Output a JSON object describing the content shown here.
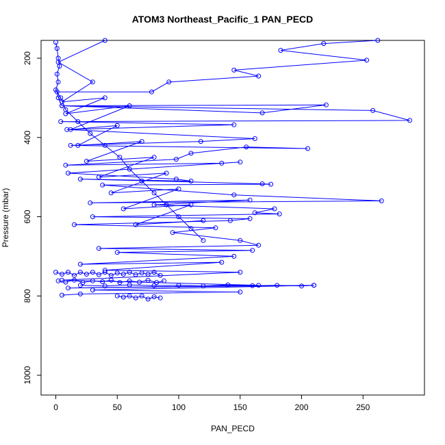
{
  "chart_data": {
    "type": "line",
    "title": "ATOM3 Northeast_Pacific_1 PAN_PECD",
    "xlabel": "PAN_PECD",
    "ylabel": "Pressure (mbar)",
    "xlim": [
      -12,
      300
    ],
    "ylim": [
      1050,
      155
    ],
    "y_reversed": true,
    "x_ticks": [
      0,
      50,
      100,
      150,
      200,
      250
    ],
    "y_ticks": [
      200,
      400,
      600,
      800,
      1000
    ],
    "grid": false,
    "legend": "none",
    "colors": {
      "series": "#0000ff",
      "axes": "#000000",
      "background": "#ffffff"
    },
    "series": [
      {
        "points": [
          [
            262,
            155
          ],
          [
            218,
            163
          ],
          [
            183,
            180
          ],
          [
            253,
            205
          ],
          [
            145,
            230
          ],
          [
            165,
            245
          ],
          [
            92,
            260
          ],
          [
            78,
            285
          ],
          [
            1,
            285
          ],
          [
            2,
            300
          ],
          [
            5,
            320
          ],
          [
            220,
            318
          ],
          [
            168,
            338
          ],
          [
            5,
            320
          ],
          [
            258,
            332
          ],
          [
            288,
            357
          ],
          [
            4,
            360
          ],
          [
            145,
            368
          ],
          [
            9,
            380
          ],
          [
            162,
            403
          ],
          [
            118,
            410
          ],
          [
            12,
            420
          ],
          [
            205,
            428
          ],
          [
            155,
            424
          ],
          [
            110,
            440
          ],
          [
            98,
            455
          ],
          [
            8,
            470
          ],
          [
            135,
            465
          ],
          [
            150,
            462
          ],
          [
            10,
            490
          ],
          [
            98,
            505
          ],
          [
            110,
            510
          ],
          [
            20,
            505
          ],
          [
            168,
            517
          ],
          [
            175,
            518
          ],
          [
            38,
            520
          ],
          [
            145,
            545
          ],
          [
            265,
            560
          ],
          [
            28,
            565
          ],
          [
            158,
            558
          ],
          [
            80,
            570
          ],
          [
            178,
            580
          ],
          [
            162,
            590
          ],
          [
            182,
            593
          ],
          [
            30,
            600
          ],
          [
            158,
            605
          ],
          [
            142,
            610
          ],
          [
            15,
            620
          ],
          [
            130,
            628
          ],
          [
            95,
            640
          ],
          [
            150,
            660
          ],
          [
            165,
            672
          ],
          [
            35,
            680
          ],
          [
            160,
            685
          ],
          [
            50,
            690
          ],
          [
            145,
            700
          ],
          [
            20,
            720
          ],
          [
            135,
            715
          ],
          [
            40,
            735
          ],
          [
            150,
            740
          ],
          [
            5,
            760
          ],
          [
            165,
            773
          ],
          [
            10,
            780
          ],
          [
            210,
            773
          ],
          [
            30,
            785
          ],
          [
            150,
            790
          ],
          [
            20,
            795
          ],
          [
            5,
            798
          ]
        ]
      },
      {
        "points": [
          [
            0,
            160
          ],
          [
            1,
            175
          ],
          [
            2,
            200
          ],
          [
            3,
            220
          ],
          [
            1,
            240
          ],
          [
            2,
            260
          ],
          [
            0,
            280
          ],
          [
            4,
            300
          ],
          [
            8,
            330
          ],
          [
            18,
            360
          ],
          [
            28,
            390
          ],
          [
            40,
            420
          ],
          [
            52,
            450
          ],
          [
            60,
            480
          ],
          [
            70,
            510
          ],
          [
            80,
            540
          ],
          [
            90,
            570
          ],
          [
            100,
            600
          ],
          [
            110,
            630
          ],
          [
            120,
            660
          ]
        ]
      },
      {
        "points": [
          [
            40,
            155
          ],
          [
            2,
            210
          ],
          [
            30,
            260
          ],
          [
            5,
            310
          ],
          [
            40,
            300
          ],
          [
            8,
            340
          ],
          [
            60,
            320
          ],
          [
            12,
            380
          ],
          [
            50,
            370
          ],
          [
            18,
            420
          ],
          [
            70,
            410
          ],
          [
            25,
            460
          ],
          [
            80,
            450
          ],
          [
            35,
            500
          ],
          [
            90,
            490
          ],
          [
            45,
            540
          ],
          [
            100,
            530
          ],
          [
            55,
            580
          ],
          [
            110,
            570
          ],
          [
            65,
            620
          ],
          [
            120,
            610
          ]
        ]
      },
      {
        "points": [
          [
            0,
            740
          ],
          [
            5,
            745
          ],
          [
            10,
            740
          ],
          [
            15,
            748
          ],
          [
            20,
            740
          ],
          [
            25,
            745
          ],
          [
            30,
            740
          ],
          [
            35,
            746
          ],
          [
            40,
            740
          ],
          [
            45,
            748
          ],
          [
            50,
            742
          ],
          [
            55,
            745
          ],
          [
            60,
            740
          ],
          [
            65,
            746
          ],
          [
            70,
            742
          ],
          [
            75,
            745
          ],
          [
            80,
            740
          ],
          [
            85,
            748
          ]
        ]
      },
      {
        "points": [
          [
            2,
            762
          ],
          [
            8,
            765
          ],
          [
            15,
            760
          ],
          [
            22,
            766
          ],
          [
            30,
            762
          ],
          [
            38,
            764
          ],
          [
            45,
            760
          ],
          [
            52,
            766
          ],
          [
            60,
            762
          ],
          [
            68,
            765
          ],
          [
            75,
            760
          ],
          [
            82,
            766
          ],
          [
            88,
            762
          ]
        ]
      },
      {
        "points": [
          [
            20,
            773
          ],
          [
            40,
            775
          ],
          [
            60,
            772
          ],
          [
            80,
            774
          ],
          [
            100,
            773
          ],
          [
            120,
            775
          ],
          [
            140,
            772
          ],
          [
            160,
            774
          ],
          [
            180,
            773
          ],
          [
            200,
            775
          ],
          [
            210,
            773
          ]
        ]
      },
      {
        "points": [
          [
            50,
            800
          ],
          [
            55,
            803
          ],
          [
            60,
            800
          ],
          [
            65,
            805
          ],
          [
            70,
            800
          ],
          [
            75,
            808
          ],
          [
            80,
            802
          ],
          [
            85,
            805
          ]
        ]
      }
    ]
  }
}
